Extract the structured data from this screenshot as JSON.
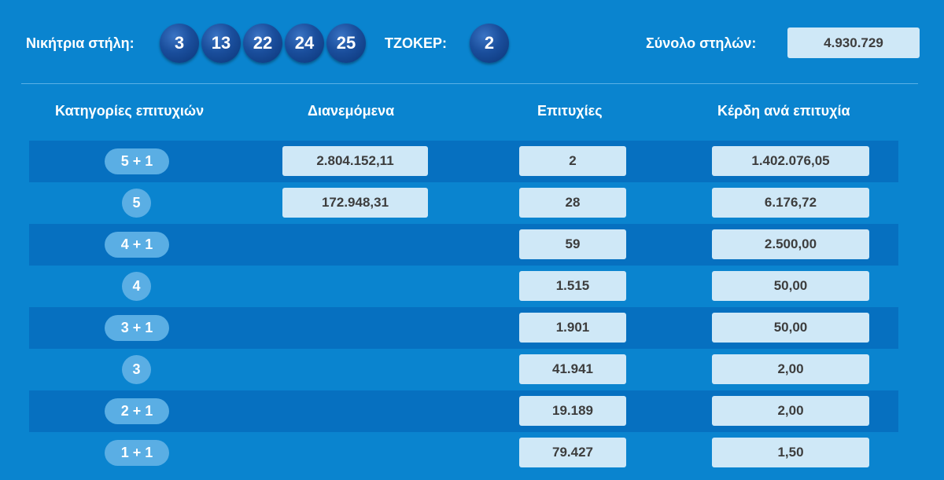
{
  "header": {
    "winning_label": "Νικήτρια στήλη:",
    "numbers": [
      "3",
      "13",
      "22",
      "24",
      "25"
    ],
    "joker_label": "ΤΖΟΚΕΡ:",
    "joker_number": "2",
    "total_label": "Σύνολο στηλών:",
    "total_value": "4.930.729"
  },
  "table": {
    "columns": [
      "Κατηγορίες επιτυχιών",
      "Διανεμόμενα",
      "Επιτυχίες",
      "Κέρδη ανά επιτυχία"
    ],
    "rows": [
      {
        "category": "5 + 1",
        "distributed": "2.804.152,11",
        "winners": "2",
        "prize": "1.402.076,05"
      },
      {
        "category": "5",
        "distributed": "172.948,31",
        "winners": "28",
        "prize": "6.176,72"
      },
      {
        "category": "4 + 1",
        "distributed": "",
        "winners": "59",
        "prize": "2.500,00"
      },
      {
        "category": "4",
        "distributed": "",
        "winners": "1.515",
        "prize": "50,00"
      },
      {
        "category": "3 + 1",
        "distributed": "",
        "winners": "1.901",
        "prize": "50,00"
      },
      {
        "category": "3",
        "distributed": "",
        "winners": "41.941",
        "prize": "2,00"
      },
      {
        "category": "2 + 1",
        "distributed": "",
        "winners": "19.189",
        "prize": "2,00"
      },
      {
        "category": "1 + 1",
        "distributed": "",
        "winners": "79.427",
        "prize": "1,50"
      }
    ]
  },
  "colors": {
    "background": "#0a84cf",
    "row_stripe": "#0670c0",
    "value_box": "#cfe8f7",
    "category_pill": "#5aaee4",
    "ball": "#1a4e9c"
  }
}
